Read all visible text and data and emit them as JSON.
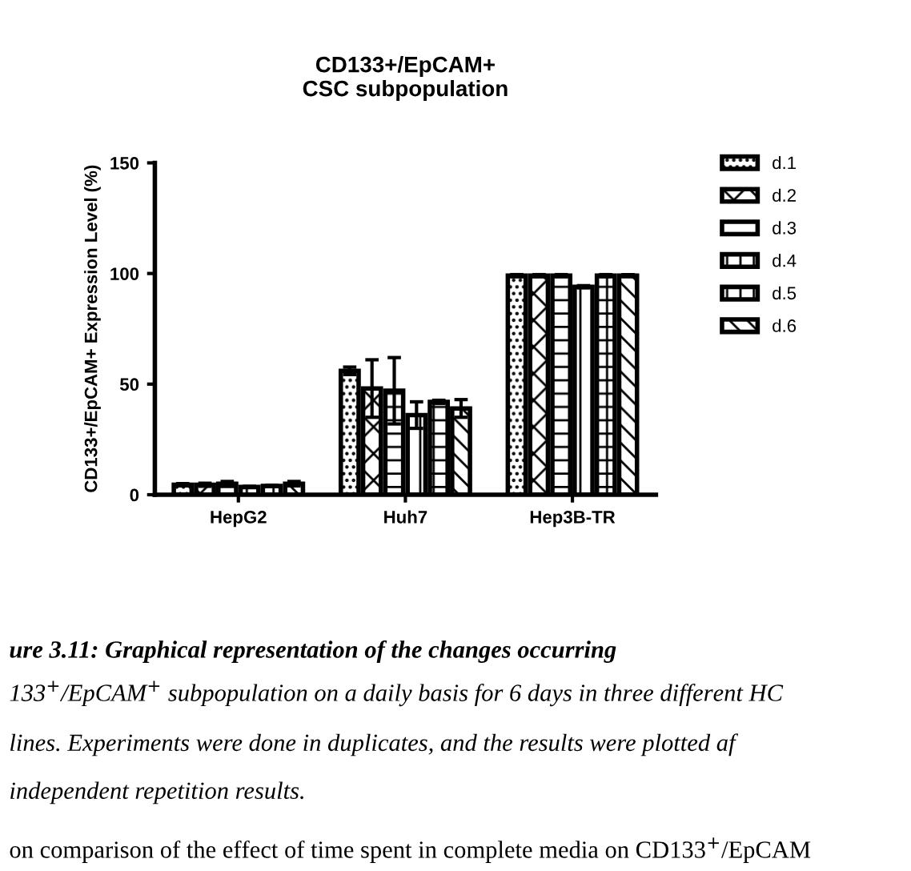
{
  "chart_data": {
    "type": "bar",
    "title": "CD133+/EpCAM+\nCSC subpopulation",
    "ylabel": "CD133+/EpCAM+ Expression Level (%)",
    "categories": [
      "HepG2",
      "Huh7",
      "Hep3B-TR"
    ],
    "series": [
      {
        "name": "d.1",
        "color": "#000000",
        "values": [
          4.5,
          56,
          99
        ],
        "errors": [
          0.5,
          1.7,
          0.5
        ]
      },
      {
        "name": "d.2",
        "color": "#000000",
        "values": [
          4.5,
          48,
          99
        ],
        "errors": [
          0.7,
          13,
          0.5
        ]
      },
      {
        "name": "d.3",
        "color": "#000000",
        "values": [
          5,
          47,
          99
        ],
        "errors": [
          1,
          15,
          0.5
        ]
      },
      {
        "name": "d.4",
        "color": "#000000",
        "values": [
          3.5,
          36,
          94
        ],
        "errors": [
          0.3,
          6,
          0.5
        ]
      },
      {
        "name": "d.5",
        "color": "#000000",
        "values": [
          4,
          42,
          99
        ],
        "errors": [
          0.3,
          0.7,
          0.5
        ]
      },
      {
        "name": "d.6",
        "color": "#000000",
        "values": [
          5,
          39,
          99
        ],
        "errors": [
          1,
          4,
          0.5
        ]
      }
    ],
    "ylim": [
      0,
      150
    ],
    "yticks": [
      0,
      50,
      100,
      150
    ],
    "grid": false,
    "legend": "right",
    "annotations": [
      "ure 3.11: Graphical representation of the changes occurring",
      "133$^{+}$/EpCAM$^{+}$ subpopulation on a daily basis for 6 days in three different HC",
      "lines. Experiments were done in duplicates, and the results were plotted af",
      "independent repetition results.",
      "on comparison of the effect of time spent in complete media on CD133$^{+}$/EpCAM"
    ]
  }
}
